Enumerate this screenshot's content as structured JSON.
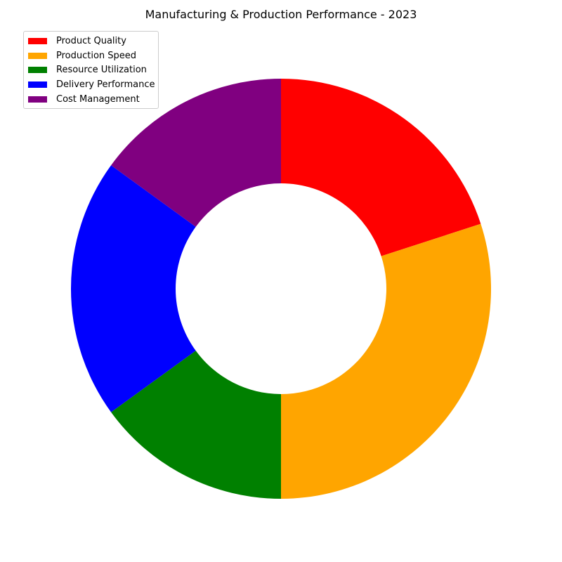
{
  "chart_data": {
    "type": "pie",
    "variant": "donut",
    "title": "Manufacturing & Production Performance - 2023",
    "categories": [
      "Product Quality",
      "Production Speed",
      "Resource Utilization",
      "Delivery Performance",
      "Cost Management"
    ],
    "values": [
      20,
      30,
      15,
      20,
      15
    ],
    "colors": [
      "#ff0000",
      "#ffa500",
      "#008000",
      "#0000ff",
      "#800080"
    ],
    "start_angle": "12 o'clock",
    "direction": "clockwise",
    "legend": "upper-left"
  }
}
